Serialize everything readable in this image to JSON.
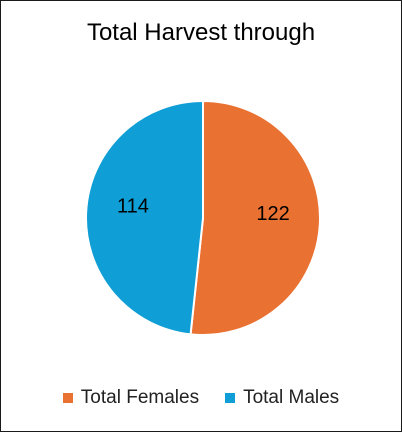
{
  "chart_data": {
    "type": "pie",
    "title": "Total Harvest through",
    "categories": [
      "Total Females",
      "Total Males"
    ],
    "values": [
      122,
      114
    ],
    "colors": [
      "#E97132",
      "#0F9ED5"
    ],
    "data_labels_shown": true,
    "legend": "bottom",
    "start_angle": "12 o'clock, clockwise"
  }
}
